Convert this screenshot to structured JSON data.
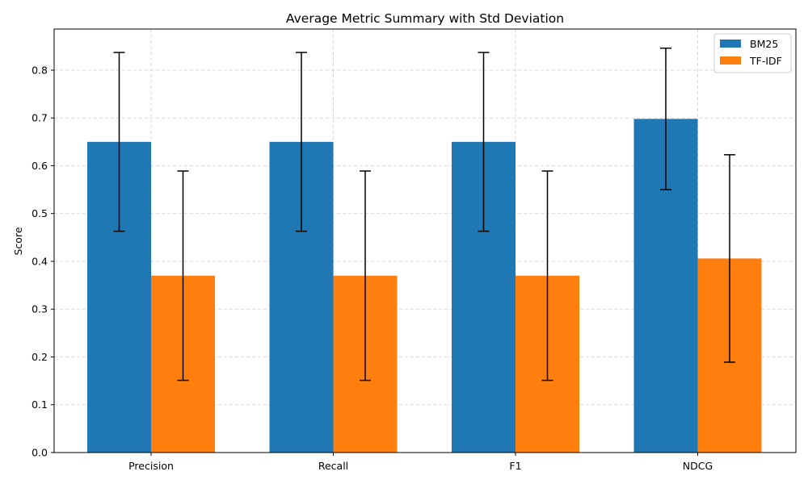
{
  "chart_data": {
    "type": "bar",
    "title": "Average Metric Summary with Std Deviation",
    "xlabel": "",
    "ylabel": "Score",
    "categories": [
      "Precision",
      "Recall",
      "F1",
      "NDCG"
    ],
    "series": [
      {
        "name": "BM25",
        "color": "#1f77b4",
        "values": [
          0.65,
          0.65,
          0.65,
          0.698
        ],
        "std": [
          0.187,
          0.187,
          0.187,
          0.148
        ]
      },
      {
        "name": "TF-IDF",
        "color": "#ff7f0e",
        "values": [
          0.37,
          0.37,
          0.37,
          0.406
        ],
        "std": [
          0.219,
          0.219,
          0.219,
          0.217
        ]
      }
    ],
    "ylim": [
      0,
      0.886
    ],
    "yticks": [
      0.0,
      0.1,
      0.2,
      0.3,
      0.4,
      0.5,
      0.6,
      0.7,
      0.8
    ],
    "ytick_labels": [
      "0.0",
      "0.1",
      "0.2",
      "0.3",
      "0.4",
      "0.5",
      "0.6",
      "0.7",
      "0.8"
    ],
    "grid": true,
    "legend_position": "top-right"
  }
}
